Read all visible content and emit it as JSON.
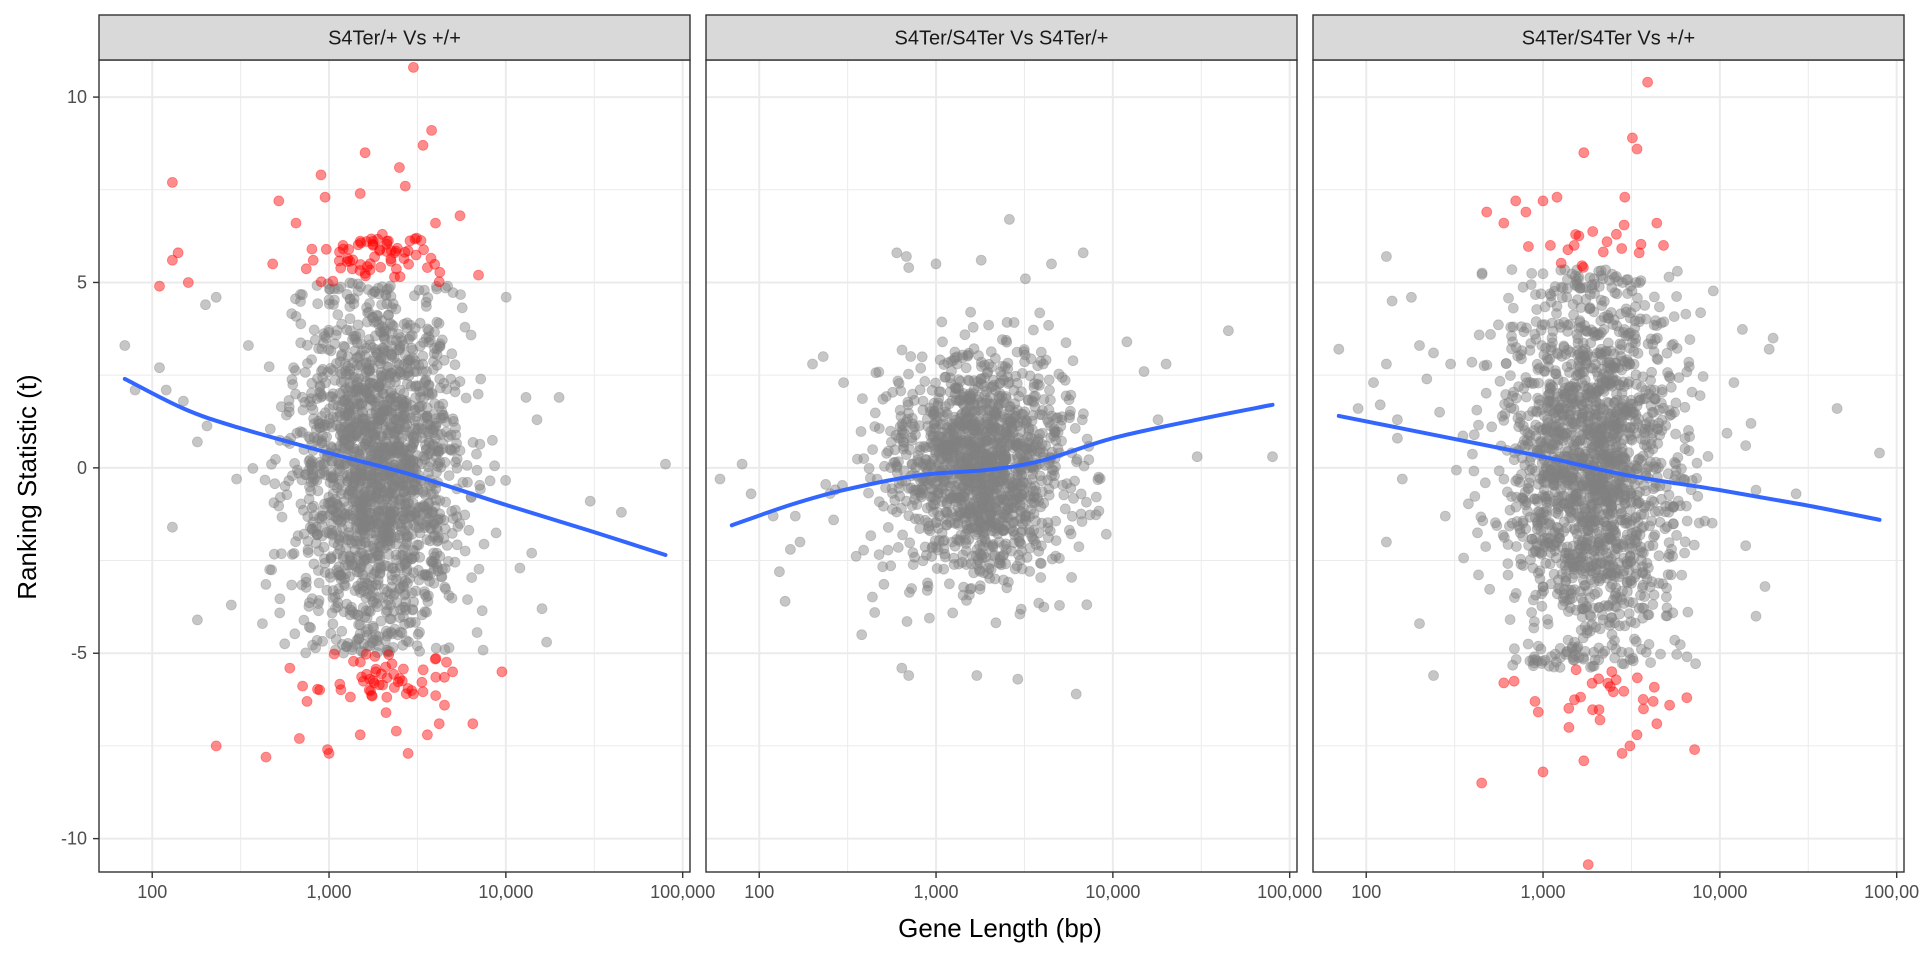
{
  "chart_data": {
    "type": "scatter",
    "facets": [
      "S4Ter/+ Vs +/+",
      "S4Ter/S4Ter Vs S4Ter/+",
      "S4Ter/S4Ter Vs +/+"
    ],
    "xlabel": "Gene Length (bp)",
    "ylabel": "Ranking Statistic (t)",
    "x_scale": "log10",
    "xlim": [
      50,
      110000
    ],
    "ylim": [
      -10.9,
      11.0
    ],
    "x_ticks": [
      100,
      1000,
      10000,
      100000
    ],
    "x_tick_labels": [
      "100",
      "1,000",
      "10,000",
      "100,000"
    ],
    "y_ticks": [
      10,
      5,
      0,
      -5,
      -10
    ],
    "y_tick_labels": [
      "10",
      "5",
      "0",
      "-5",
      "-10"
    ],
    "grid": true,
    "colors": {
      "nonsignificant": "#808080",
      "significant": "#ff0000",
      "trend": "#3366ff",
      "strip_fill": "#d9d9d9",
      "grid": "#ebebeb"
    },
    "panels": [
      {
        "trend": [
          [
            70,
            2.4
          ],
          [
            150,
            1.6
          ],
          [
            300,
            1.1
          ],
          [
            1000,
            0.4
          ],
          [
            3000,
            -0.2
          ],
          [
            10000,
            -1.0
          ],
          [
            30000,
            -1.7
          ],
          [
            80000,
            -2.35
          ]
        ],
        "cloud": {
          "x_center": 1900,
          "x_sd_log10": 0.24,
          "y_sd": 2.4,
          "y_clip": 5.0,
          "n": 1800
        },
        "significant": [
          [
            130,
            7.7
          ],
          [
            140,
            5.8
          ],
          [
            130,
            5.6
          ],
          [
            110,
            4.9
          ],
          [
            160,
            5.0
          ],
          [
            480,
            5.5
          ],
          [
            520,
            7.2
          ],
          [
            900,
            7.9
          ],
          [
            950,
            7.3
          ],
          [
            1600,
            8.5
          ],
          [
            2500,
            8.1
          ],
          [
            3000,
            10.8
          ],
          [
            3400,
            8.7
          ],
          [
            3800,
            9.1
          ],
          [
            4000,
            6.6
          ],
          [
            5500,
            6.8
          ],
          [
            7000,
            5.2
          ],
          [
            650,
            6.6
          ],
          [
            1200,
            6.0
          ],
          [
            2000,
            6.3
          ],
          [
            2700,
            7.6
          ],
          [
            1500,
            7.4
          ],
          [
            800,
            5.9
          ],
          [
            3600,
            5.4
          ],
          [
            230,
            -7.5
          ],
          [
            440,
            -7.8
          ],
          [
            680,
            -7.3
          ],
          [
            980,
            -7.6
          ],
          [
            1500,
            -7.2
          ],
          [
            2800,
            -7.7
          ],
          [
            3600,
            -7.2
          ],
          [
            4200,
            -6.9
          ],
          [
            5000,
            -5.5
          ],
          [
            6500,
            -6.9
          ],
          [
            9500,
            -5.5
          ],
          [
            1000,
            -7.7
          ],
          [
            2100,
            -6.6
          ],
          [
            3000,
            -6.1
          ],
          [
            600,
            -5.4
          ],
          [
            1800,
            -5.8
          ],
          [
            4500,
            -6.4
          ],
          [
            750,
            -6.3
          ],
          [
            2400,
            -7.1
          ]
        ],
        "sig_cluster": {
          "n": 110
        },
        "outliers": [
          [
            70,
            3.3
          ],
          [
            80,
            2.1
          ],
          [
            110,
            2.7
          ],
          [
            120,
            2.1
          ],
          [
            130,
            -1.6
          ],
          [
            150,
            1.8
          ],
          [
            180,
            -4.1
          ],
          [
            180,
            0.7
          ],
          [
            200,
            4.4
          ],
          [
            230,
            4.6
          ],
          [
            280,
            -3.7
          ],
          [
            300,
            -0.3
          ],
          [
            350,
            3.3
          ],
          [
            420,
            -4.2
          ],
          [
            13000,
            1.9
          ],
          [
            15000,
            1.3
          ],
          [
            20000,
            1.9
          ],
          [
            30000,
            -0.9
          ],
          [
            45000,
            -1.2
          ],
          [
            80000,
            0.1
          ],
          [
            14000,
            -2.3
          ],
          [
            16000,
            -3.8
          ],
          [
            17000,
            -4.7
          ],
          [
            12000,
            -2.7
          ]
        ]
      },
      {
        "trend": [
          [
            70,
            -1.55
          ],
          [
            150,
            -1.0
          ],
          [
            300,
            -0.6
          ],
          [
            800,
            -0.2
          ],
          [
            2000,
            -0.05
          ],
          [
            4000,
            0.2
          ],
          [
            10000,
            0.8
          ],
          [
            30000,
            1.3
          ],
          [
            80000,
            1.7
          ]
        ],
        "cloud": {
          "x_center": 1800,
          "x_sd_log10": 0.25,
          "y_sd": 1.5,
          "y_clip": 4.2,
          "n": 1400
        },
        "significant": [],
        "sig_cluster": {
          "n": 0
        },
        "outliers": [
          [
            60,
            -0.3
          ],
          [
            80,
            0.1
          ],
          [
            90,
            -0.7
          ],
          [
            120,
            -1.3
          ],
          [
            130,
            -2.8
          ],
          [
            140,
            -3.6
          ],
          [
            150,
            -2.2
          ],
          [
            160,
            -1.3
          ],
          [
            170,
            -2.0
          ],
          [
            200,
            2.8
          ],
          [
            230,
            3.0
          ],
          [
            300,
            2.3
          ],
          [
            600,
            5.8
          ],
          [
            680,
            5.7
          ],
          [
            700,
            5.4
          ],
          [
            1000,
            5.5
          ],
          [
            1800,
            5.6
          ],
          [
            2600,
            6.7
          ],
          [
            3200,
            5.1
          ],
          [
            4500,
            5.5
          ],
          [
            6800,
            5.8
          ],
          [
            640,
            -5.4
          ],
          [
            700,
            -5.6
          ],
          [
            1700,
            -5.6
          ],
          [
            2900,
            -5.7
          ],
          [
            6200,
            -6.1
          ],
          [
            12000,
            3.4
          ],
          [
            20000,
            2.8
          ],
          [
            30000,
            0.3
          ],
          [
            45000,
            3.7
          ],
          [
            80000,
            0.3
          ],
          [
            15000,
            2.6
          ],
          [
            18000,
            1.3
          ],
          [
            380,
            -4.5
          ],
          [
            450,
            -3.9
          ]
        ]
      },
      {
        "trend": [
          [
            70,
            1.4
          ],
          [
            300,
            0.8
          ],
          [
            1000,
            0.3
          ],
          [
            3000,
            -0.2
          ],
          [
            10000,
            -0.6
          ],
          [
            30000,
            -1.0
          ],
          [
            80000,
            -1.4
          ]
        ],
        "cloud": {
          "x_center": 1900,
          "x_sd_log10": 0.25,
          "y_sd": 2.6,
          "y_clip": 5.4,
          "n": 1800
        },
        "significant": [
          [
            480,
            6.9
          ],
          [
            600,
            6.6
          ],
          [
            700,
            7.2
          ],
          [
            800,
            6.9
          ],
          [
            1000,
            7.2
          ],
          [
            1200,
            7.3
          ],
          [
            1700,
            8.5
          ],
          [
            2300,
            6.1
          ],
          [
            2900,
            7.3
          ],
          [
            3200,
            8.9
          ],
          [
            3400,
            8.6
          ],
          [
            3900,
            10.4
          ],
          [
            4400,
            6.6
          ],
          [
            4800,
            6.0
          ],
          [
            1500,
            6.0
          ],
          [
            2600,
            6.3
          ],
          [
            3500,
            5.8
          ],
          [
            1100,
            6.0
          ],
          [
            450,
            -8.5
          ],
          [
            1000,
            -8.2
          ],
          [
            1700,
            -7.9
          ],
          [
            1800,
            -10.7
          ],
          [
            2800,
            -7.7
          ],
          [
            3100,
            -7.5
          ],
          [
            3400,
            -7.2
          ],
          [
            4200,
            -6.3
          ],
          [
            4400,
            -6.9
          ],
          [
            7200,
            -7.6
          ],
          [
            6500,
            -6.2
          ],
          [
            1400,
            -7.0
          ],
          [
            600,
            -5.8
          ],
          [
            900,
            -6.3
          ],
          [
            2100,
            -6.8
          ],
          [
            2400,
            -5.9
          ],
          [
            3700,
            -6.5
          ],
          [
            5200,
            -6.4
          ]
        ],
        "sig_cluster": {
          "n": 30
        },
        "outliers": [
          [
            70,
            3.2
          ],
          [
            90,
            1.6
          ],
          [
            110,
            2.3
          ],
          [
            120,
            1.7
          ],
          [
            130,
            5.7
          ],
          [
            130,
            2.8
          ],
          [
            130,
            -2.0
          ],
          [
            140,
            4.5
          ],
          [
            150,
            0.8
          ],
          [
            150,
            1.3
          ],
          [
            160,
            -0.3
          ],
          [
            180,
            4.6
          ],
          [
            200,
            3.3
          ],
          [
            220,
            2.4
          ],
          [
            240,
            3.1
          ],
          [
            240,
            -5.6
          ],
          [
            200,
            -4.2
          ],
          [
            260,
            1.5
          ],
          [
            280,
            -1.3
          ],
          [
            300,
            2.8
          ],
          [
            14000,
            0.6
          ],
          [
            16000,
            -0.6
          ],
          [
            18000,
            -3.2
          ],
          [
            20000,
            3.5
          ],
          [
            27000,
            -0.7
          ],
          [
            46000,
            1.6
          ],
          [
            80000,
            0.4
          ],
          [
            15000,
            1.2
          ],
          [
            12000,
            2.3
          ],
          [
            16000,
            -4.0
          ],
          [
            14000,
            -2.1
          ],
          [
            19000,
            3.2
          ]
        ]
      }
    ]
  }
}
